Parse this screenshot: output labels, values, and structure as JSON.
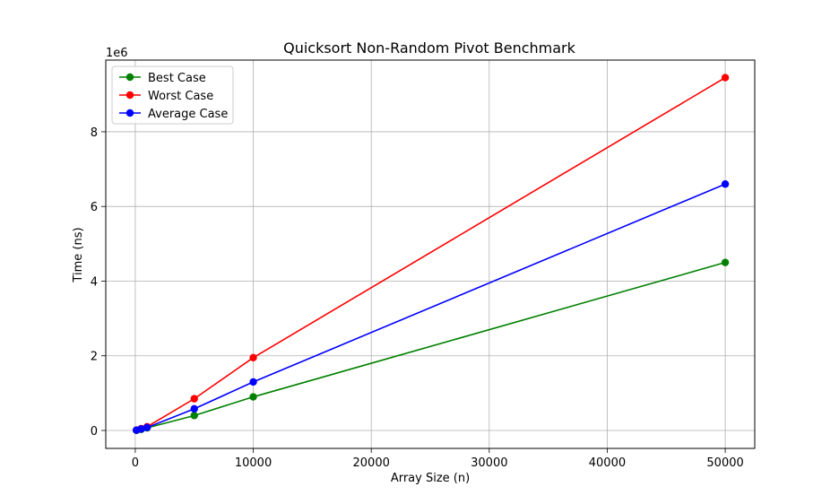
{
  "chart_data": {
    "type": "line",
    "title": "Quicksort Non-Random Pivot Benchmark",
    "xlabel": "Array Size (n)",
    "ylabel": "Time (ns)",
    "y_offset_label": "1e6",
    "x": [
      100,
      500,
      1000,
      5000,
      10000,
      50000
    ],
    "xlim": [
      -2500,
      52500
    ],
    "ylim": [
      -0.48,
      9.92
    ],
    "y_unit_multiplier": 1000000,
    "x_ticks": [
      0,
      10000,
      20000,
      30000,
      40000,
      50000
    ],
    "x_tick_labels": [
      "0",
      "10000",
      "20000",
      "30000",
      "40000",
      "50000"
    ],
    "y_ticks": [
      0,
      2,
      4,
      6,
      8
    ],
    "y_tick_labels": [
      "0",
      "2",
      "4",
      "6",
      "8"
    ],
    "grid": true,
    "legend_position": "top-left",
    "series": [
      {
        "name": "Best Case",
        "color": "#008000",
        "values": [
          0.005,
          0.03,
          0.07,
          0.4,
          0.9,
          4.5
        ]
      },
      {
        "name": "Worst Case",
        "color": "#ff0000",
        "values": [
          0.01,
          0.05,
          0.1,
          0.85,
          1.95,
          9.45
        ]
      },
      {
        "name": "Average Case",
        "color": "#0000ff",
        "values": [
          0.008,
          0.04,
          0.08,
          0.58,
          1.3,
          6.6
        ]
      }
    ]
  }
}
